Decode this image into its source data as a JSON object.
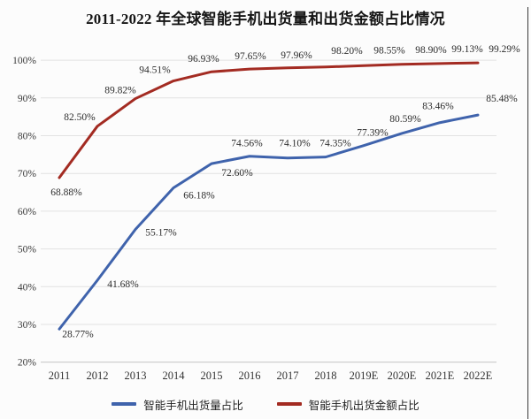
{
  "title": "2011-2022 年全球智能手机出货量和出货金额占比情况",
  "colors": {
    "volume_series": "#3f63ac",
    "value_series": "#a32b22",
    "gridline": "#e2e2e2",
    "axis_line": "#c9c9c9"
  },
  "chart_data": {
    "type": "line",
    "title": "2011-2022 年全球智能手机出货量和出货金额占比情况",
    "categories": [
      "2011",
      "2012",
      "2013",
      "2014",
      "2015",
      "2016",
      "2017",
      "2018",
      "2019E",
      "2020E",
      "2021E",
      "2022E"
    ],
    "ylim": [
      20,
      100
    ],
    "ytick_labels": [
      "20%",
      "30%",
      "40%",
      "50%",
      "60%",
      "70%",
      "80%",
      "90%",
      "100%"
    ],
    "grid": true,
    "legend_position": "bottom",
    "series": [
      {
        "name": "智能手机出货量占比",
        "color": "#3f63ac",
        "values": [
          28.77,
          41.68,
          55.17,
          66.18,
          72.6,
          74.56,
          74.1,
          74.35,
          77.39,
          80.59,
          83.46,
          85.48
        ],
        "labels": [
          "28.77%",
          "41.68%",
          "55.17%",
          "66.18%",
          "72.60%",
          "74.56%",
          "74.10%",
          "74.35%",
          "77.39%",
          "80.59%",
          "83.46%",
          "85.48%"
        ],
        "label_offsets": [
          [
            21,
            5
          ],
          [
            29,
            4
          ],
          [
            29,
            3
          ],
          [
            29,
            8
          ],
          [
            29,
            10
          ],
          [
            -3,
            -15
          ],
          [
            8,
            -17
          ],
          [
            11,
            -16
          ],
          [
            10,
            -15
          ],
          [
            4,
            -17
          ],
          [
            -2,
            -19
          ],
          [
            27,
            -19
          ]
        ]
      },
      {
        "name": "智能手机出货金额占比",
        "color": "#a32b22",
        "values": [
          68.88,
          82.5,
          89.82,
          94.51,
          96.93,
          97.65,
          97.96,
          98.2,
          98.55,
          98.9,
          99.13,
          99.29
        ],
        "labels": [
          "68.88%",
          "82.50%",
          "89.82%",
          "94.51%",
          "96.93%",
          "97.65%",
          "97.96%",
          "98.20%",
          "98.55%",
          "98.90%",
          "99.13%",
          "99.29%"
        ],
        "label_offsets": [
          [
            8,
            16
          ],
          [
            -20,
            -11
          ],
          [
            -17,
            -10
          ],
          [
            -21,
            -13
          ],
          [
            -9,
            -15
          ],
          [
            1,
            -15
          ],
          [
            10,
            -15
          ],
          [
            24,
            -19
          ],
          [
            29,
            -18
          ],
          [
            33,
            -17
          ],
          [
            31,
            -17
          ],
          [
            30,
            -16
          ]
        ]
      }
    ]
  }
}
